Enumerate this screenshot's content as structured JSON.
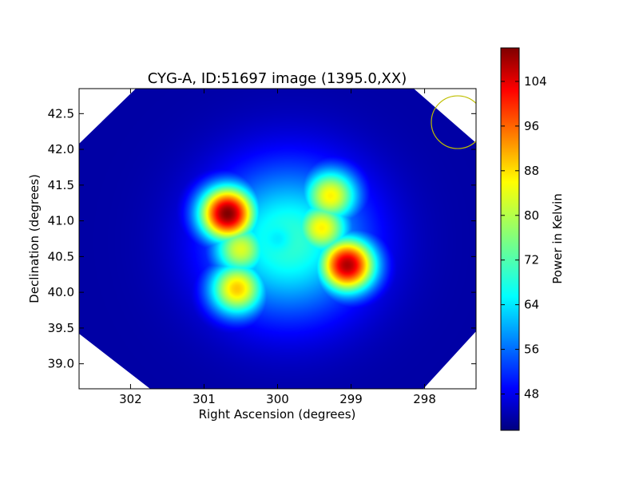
{
  "chart_data": {
    "type": "heatmap",
    "title": "CYG-A, ID:51697 image (1395.0,XX)",
    "xlabel": "Right Ascension (degrees)",
    "ylabel": "Declination (degrees)",
    "xlim": [
      302.7,
      297.3
    ],
    "ylim": [
      38.65,
      42.85
    ],
    "x_ticks": [
      "302",
      "301",
      "300",
      "299",
      "298"
    ],
    "y_ticks": [
      "39.0",
      "39.5",
      "40.0",
      "40.5",
      "41.0",
      "41.5",
      "42.0",
      "42.5"
    ],
    "grid": false,
    "colormap": "jet",
    "colorbar": {
      "label": "Power in Kelvin",
      "range": [
        41.5,
        110
      ],
      "ticks": [
        "48",
        "56",
        "64",
        "72",
        "80",
        "88",
        "96",
        "104"
      ]
    },
    "background_level": 44,
    "sources": [
      {
        "ra": 300.68,
        "dec": 41.1,
        "peak": 110,
        "note": "brightest lobe (upper-left)"
      },
      {
        "ra": 299.05,
        "dec": 40.38,
        "peak": 107,
        "note": "bright lobe (lower-right)"
      },
      {
        "ra": 299.28,
        "dec": 41.35,
        "peak": 85
      },
      {
        "ra": 300.55,
        "dec": 40.05,
        "peak": 88
      },
      {
        "ra": 300.5,
        "dec": 40.6,
        "peak": 82
      },
      {
        "ra": 299.4,
        "dec": 40.9,
        "peak": 85
      }
    ],
    "center_dip": {
      "ra": 300.0,
      "dec": 40.75,
      "value": 66
    },
    "beam_marker": {
      "shape": "circle",
      "color": "#bfbf00",
      "ra": 297.55,
      "dec": 42.38
    },
    "field_boundary": "octagon (masked corners shown white)"
  }
}
